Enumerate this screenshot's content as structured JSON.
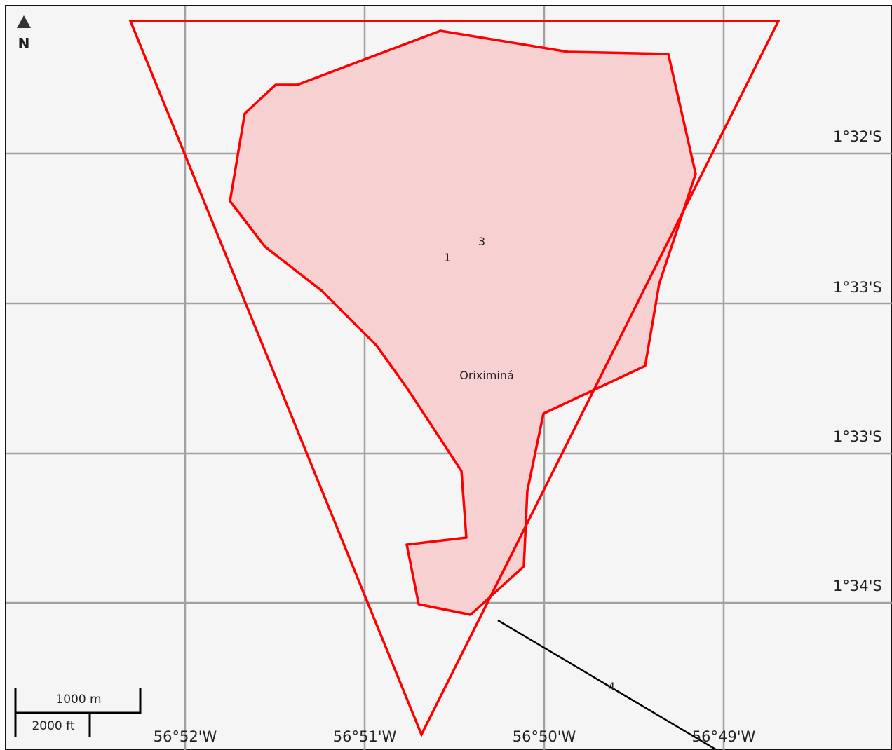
{
  "north_arrow": {
    "label": "N"
  },
  "latitude_labels": [
    "1°32'S",
    "1°33'S",
    "1°33'S",
    "1°34'S"
  ],
  "longitude_labels": [
    "56°52'W",
    "56°51'W",
    "56°50'W",
    "56°49'W"
  ],
  "features": {
    "town_label": "Oriximiná",
    "marker_1": "1",
    "marker_3": "3",
    "marker_4": "4"
  },
  "scale_bar": {
    "metric": "1000 m",
    "imperial": "2000 ft"
  },
  "colors": {
    "background": "#f5f5f5",
    "grid": "#999999",
    "outline": "#ff0000",
    "fill": "#f7d0d2",
    "line": "#000000"
  }
}
